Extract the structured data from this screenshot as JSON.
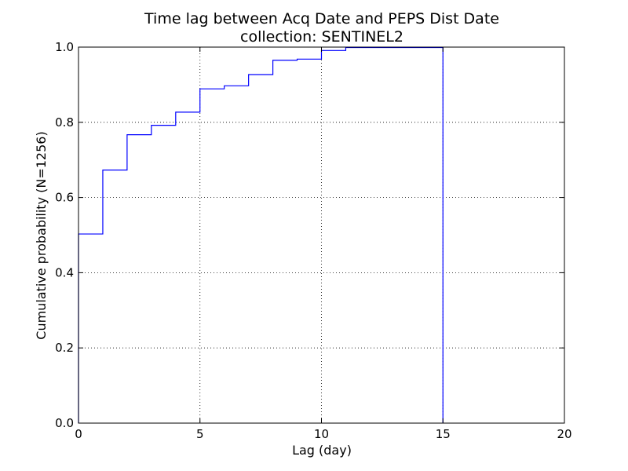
{
  "chart_data": {
    "type": "line",
    "title": "Time lag between Acq Date and PEPS Dist Date",
    "subtitle": "collection: SENTINEL2",
    "xlabel": "Lag (day)",
    "ylabel": "Cumulative probability (N=1256)",
    "xlim": [
      0,
      20
    ],
    "ylim": [
      0.0,
      1.0
    ],
    "xticks": [
      0,
      5,
      10,
      15,
      20
    ],
    "xtick_labels": [
      "0",
      "5",
      "10",
      "15",
      "20"
    ],
    "yticks": [
      0.0,
      0.2,
      0.4,
      0.6,
      0.8,
      1.0
    ],
    "ytick_labels": [
      "0.0",
      "0.2",
      "0.4",
      "0.6",
      "0.8",
      "1.0"
    ],
    "grid": true,
    "step": true,
    "series": [
      {
        "color": "#0000ff",
        "x": [
          0,
          0,
          1,
          2,
          3,
          4,
          5,
          6,
          7,
          8,
          9,
          10,
          11,
          15,
          15
        ],
        "y": [
          0.0,
          0.503,
          0.673,
          0.767,
          0.792,
          0.827,
          0.889,
          0.897,
          0.927,
          0.965,
          0.968,
          0.991,
          0.999,
          0.999,
          0.0
        ]
      }
    ]
  }
}
